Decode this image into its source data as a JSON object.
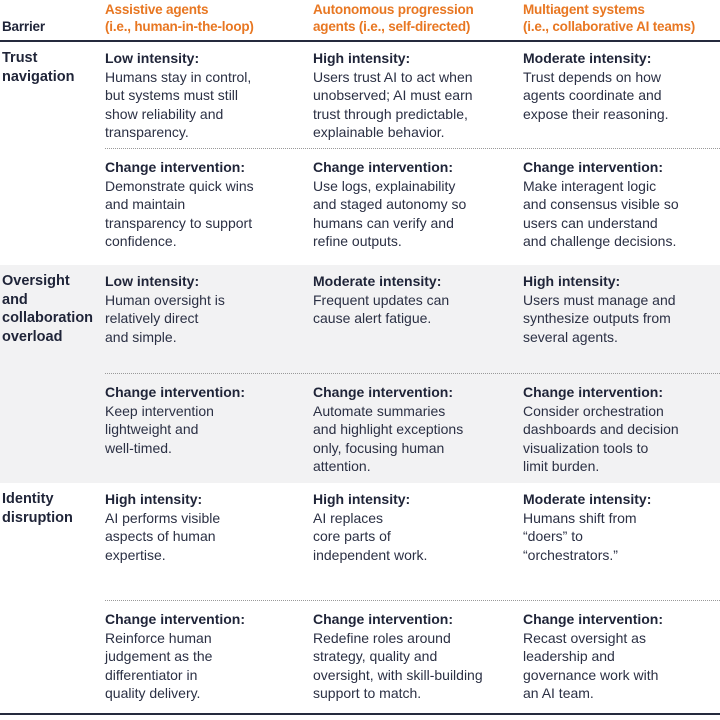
{
  "colors": {
    "accent_orange": "#E87722",
    "heading_navy": "#1F2438",
    "body_text": "#2B3044",
    "shaded_band": "#F2F2F3",
    "rule_navy": "#252A3E",
    "dotted_divider": "#999999"
  },
  "table": {
    "headers": {
      "barrier": "Barrier",
      "col2": {
        "line1": "Assistive agents",
        "line2": "(i.e., human-in-the-loop)"
      },
      "col3": {
        "line1": "Autonomous progression",
        "line2": "agents (i.e., self-directed)"
      },
      "col4": {
        "line1": "Multiagent systems",
        "line2": "(i.e., collaborative AI teams)"
      }
    },
    "sections": [
      {
        "barrier": "Trust\nnavigation",
        "intensity": [
          {
            "label": "Low intensity:",
            "text": "Humans stay in control,\nbut systems must still\nshow reliability and\ntransparency."
          },
          {
            "label": "High intensity:",
            "text": "Users trust AI to act when\nunobserved; AI must earn\ntrust through predictable,\nexplainable behavior."
          },
          {
            "label": "Moderate intensity:",
            "text": "Trust depends on how\nagents coordinate and\nexpose their reasoning."
          }
        ],
        "intervention": [
          {
            "label": "Change intervention:",
            "text": "Demonstrate quick wins\nand maintain\ntransparency to support\nconfidence."
          },
          {
            "label": "Change intervention:",
            "text": "Use logs, explainability\nand staged autonomy so\nhumans can verify and\nrefine outputs."
          },
          {
            "label": "Change intervention:",
            "text": "Make interagent logic\nand consensus visible so\nusers can understand\nand challenge decisions."
          }
        ]
      },
      {
        "barrier": "Oversight\nand\ncollaboration\noverload",
        "intensity": [
          {
            "label": "Low intensity:",
            "text": "Human oversight is\nrelatively direct\nand simple."
          },
          {
            "label": "Moderate intensity:",
            "text": "Frequent updates can\ncause alert fatigue."
          },
          {
            "label": "High intensity:",
            "text": "Users must manage and\nsynthesize outputs from\nseveral agents."
          }
        ],
        "intervention": [
          {
            "label": "Change intervention:",
            "text": "Keep intervention\nlightweight and\nwell-timed."
          },
          {
            "label": "Change intervention:",
            "text": "Automate summaries\nand highlight exceptions\nonly, focusing human\nattention."
          },
          {
            "label": "Change intervention:",
            "text": "Consider orchestration\ndashboards and decision\nvisualization tools to\nlimit burden."
          }
        ]
      },
      {
        "barrier": "Identity\ndisruption",
        "intensity": [
          {
            "label": "High intensity:",
            "text": "AI performs visible\naspects of human\nexpertise."
          },
          {
            "label": "High intensity:",
            "text": "AI replaces\ncore parts of\nindependent work."
          },
          {
            "label": "Moderate intensity:",
            "text": "Humans shift from\n“doers” to\n“orchestrators.”"
          }
        ],
        "intervention": [
          {
            "label": "Change intervention:",
            "text": "Reinforce human\njudgement as the\ndifferentiator in\nquality delivery."
          },
          {
            "label": "Change intervention:",
            "text": "Redefine roles around\nstrategy, quality and\noversight, with skill-building\nsupport to match."
          },
          {
            "label": "Change intervention:",
            "text": "Recast oversight as\nleadership and\ngovernance work with\nan AI team."
          }
        ]
      }
    ]
  }
}
